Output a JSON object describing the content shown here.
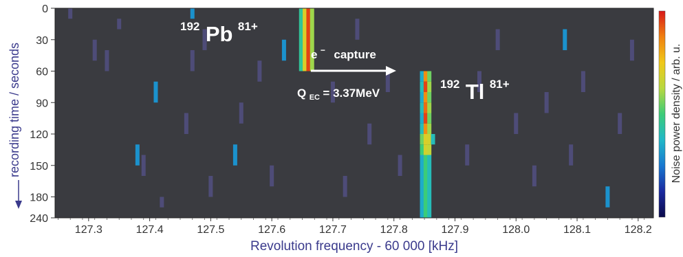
{
  "chart_data": {
    "type": "heatmap",
    "xlabel": "Revolution frequency - 60 000 [kHz]",
    "ylabel": "recording time / seconds",
    "colorbar_label": "Noise power density / arb. u.",
    "x_ticks": [
      "127.3",
      "127.4",
      "127.5",
      "127.6",
      "127.7",
      "127.8",
      "127.9",
      "128.0",
      "128.1",
      "128.2"
    ],
    "y_ticks": [
      "0",
      "30",
      "60",
      "90",
      "120",
      "150",
      "180",
      "240"
    ],
    "xlim": [
      127.245,
      128.225
    ],
    "y_rows": [
      0,
      10,
      20,
      30,
      40,
      50,
      60,
      70,
      80,
      90,
      100,
      110,
      120,
      130,
      140,
      150,
      160,
      170,
      180,
      190,
      240
    ],
    "background_color": "#3a3b40",
    "colormap": [
      "#0a0a4a",
      "#1a2aa0",
      "#1878d0",
      "#20b8c8",
      "#3ccc78",
      "#b8d840",
      "#f0c818",
      "#f08010",
      "#d81818"
    ],
    "annotations": {
      "pb": {
        "mass": "192",
        "element": "Pb",
        "charge": "81+"
      },
      "tl": {
        "mass": "192",
        "element": "Tl",
        "charge": "81+"
      },
      "capture": {
        "e_text": "e",
        "e_sup": "−",
        "word": "capture"
      },
      "qec": {
        "q": "Q",
        "sub": "EC",
        "value": "= 3.37MeV"
      }
    },
    "traces": [
      {
        "label": "192Pb81+",
        "t_start": 0,
        "t_end": 60,
        "cells": [
          {
            "x": 127.648,
            "level": 0.45
          },
          {
            "x": 127.654,
            "level": 0.7
          },
          {
            "x": 127.66,
            "level": 0.95
          },
          {
            "x": 127.666,
            "level": 0.6
          }
        ]
      },
      {
        "label": "192Tl81+",
        "t_start": 60,
        "t_end": 240,
        "rows": [
          [
            {
              "x": 127.846,
              "level": 0.35
            },
            {
              "x": 127.852,
              "level": 0.85
            },
            {
              "x": 127.858,
              "level": 0.55
            }
          ],
          [
            {
              "x": 127.846,
              "level": 0.4
            },
            {
              "x": 127.852,
              "level": 0.95
            },
            {
              "x": 127.858,
              "level": 0.6
            }
          ],
          [
            {
              "x": 127.846,
              "level": 0.35
            },
            {
              "x": 127.852,
              "level": 0.85
            },
            {
              "x": 127.858,
              "level": 0.55
            }
          ],
          [
            {
              "x": 127.846,
              "level": 0.4
            },
            {
              "x": 127.852,
              "level": 0.9
            },
            {
              "x": 127.858,
              "level": 0.6
            }
          ],
          [
            {
              "x": 127.846,
              "level": 0.35
            },
            {
              "x": 127.852,
              "level": 0.95
            },
            {
              "x": 127.858,
              "level": 0.55
            }
          ],
          [
            {
              "x": 127.846,
              "level": 0.4
            },
            {
              "x": 127.852,
              "level": 0.85
            },
            {
              "x": 127.858,
              "level": 0.6
            }
          ],
          [
            {
              "x": 127.846,
              "level": 0.55
            },
            {
              "x": 127.852,
              "level": 0.7
            },
            {
              "x": 127.858,
              "level": 0.68
            },
            {
              "x": 127.864,
              "level": 0.4
            }
          ],
          [
            {
              "x": 127.846,
              "level": 0.5
            },
            {
              "x": 127.852,
              "level": 0.68
            },
            {
              "x": 127.858,
              "level": 0.65
            }
          ],
          [
            {
              "x": 127.846,
              "level": 0.35
            },
            {
              "x": 127.852,
              "level": 0.5
            },
            {
              "x": 127.858,
              "level": 0.4
            }
          ]
        ]
      }
    ],
    "noise": [
      {
        "x": 127.27,
        "t": [
          0,
          10
        ],
        "level": 0.12
      },
      {
        "x": 127.31,
        "t": [
          30,
          50
        ],
        "level": 0.12
      },
      {
        "x": 127.33,
        "t": [
          40,
          60
        ],
        "level": 0.12
      },
      {
        "x": 127.35,
        "t": [
          10,
          20
        ],
        "level": 0.12
      },
      {
        "x": 127.38,
        "t": [
          130,
          150
        ],
        "level": 0.3
      },
      {
        "x": 127.39,
        "t": [
          140,
          160
        ],
        "level": 0.12
      },
      {
        "x": 127.41,
        "t": [
          70,
          90
        ],
        "level": 0.3
      },
      {
        "x": 127.42,
        "t": [
          180,
          190
        ],
        "level": 0.12
      },
      {
        "x": 127.46,
        "t": [
          100,
          120
        ],
        "level": 0.12
      },
      {
        "x": 127.47,
        "t": [
          0,
          10
        ],
        "level": 0.3
      },
      {
        "x": 127.47,
        "t": [
          40,
          60
        ],
        "level": 0.12
      },
      {
        "x": 127.49,
        "t": [
          20,
          40
        ],
        "level": 0.12
      },
      {
        "x": 127.5,
        "t": [
          160,
          180
        ],
        "level": 0.12
      },
      {
        "x": 127.54,
        "t": [
          130,
          150
        ],
        "level": 0.3
      },
      {
        "x": 127.55,
        "t": [
          90,
          110
        ],
        "level": 0.12
      },
      {
        "x": 127.58,
        "t": [
          50,
          70
        ],
        "level": 0.12
      },
      {
        "x": 127.6,
        "t": [
          150,
          170
        ],
        "level": 0.12
      },
      {
        "x": 127.62,
        "t": [
          30,
          50
        ],
        "level": 0.3
      },
      {
        "x": 127.7,
        "t": [
          70,
          90
        ],
        "level": 0.12
      },
      {
        "x": 127.72,
        "t": [
          160,
          180
        ],
        "level": 0.12
      },
      {
        "x": 127.74,
        "t": [
          10,
          30
        ],
        "level": 0.12
      },
      {
        "x": 127.76,
        "t": [
          110,
          130
        ],
        "level": 0.12
      },
      {
        "x": 127.79,
        "t": [
          60,
          80
        ],
        "level": 0.12
      },
      {
        "x": 127.81,
        "t": [
          140,
          160
        ],
        "level": 0.12
      },
      {
        "x": 127.92,
        "t": [
          130,
          150
        ],
        "level": 0.12
      },
      {
        "x": 127.94,
        "t": [
          60,
          80
        ],
        "level": 0.12
      },
      {
        "x": 127.97,
        "t": [
          20,
          40
        ],
        "level": 0.12
      },
      {
        "x": 128.0,
        "t": [
          100,
          120
        ],
        "level": 0.12
      },
      {
        "x": 128.03,
        "t": [
          150,
          170
        ],
        "level": 0.12
      },
      {
        "x": 128.05,
        "t": [
          80,
          100
        ],
        "level": 0.12
      },
      {
        "x": 128.08,
        "t": [
          20,
          40
        ],
        "level": 0.3
      },
      {
        "x": 128.09,
        "t": [
          130,
          150
        ],
        "level": 0.12
      },
      {
        "x": 128.11,
        "t": [
          60,
          80
        ],
        "level": 0.12
      },
      {
        "x": 128.15,
        "t": [
          170,
          190
        ],
        "level": 0.3
      },
      {
        "x": 128.17,
        "t": [
          100,
          120
        ],
        "level": 0.12
      },
      {
        "x": 128.19,
        "t": [
          30,
          50
        ],
        "level": 0.12
      }
    ]
  }
}
